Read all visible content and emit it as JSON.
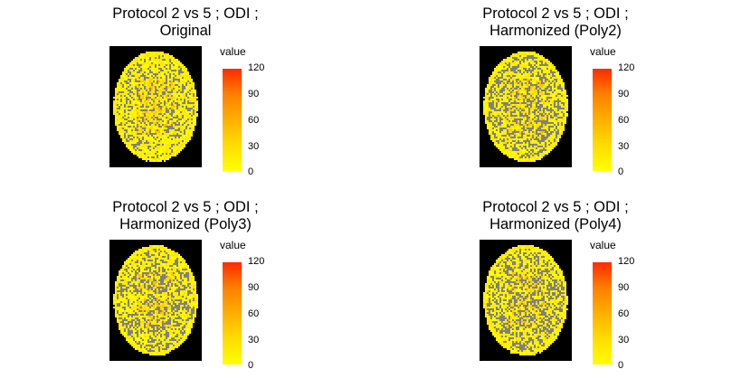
{
  "chart_data": [
    {
      "type": "heatmap",
      "title_lines": [
        "Protocol 2 vs 5 ; ODI ;",
        "Original"
      ],
      "legend_title": "value",
      "scale_ticks": [
        "120",
        "90",
        "60",
        "30",
        "0"
      ],
      "scale_range": [
        0,
        120
      ],
      "colors": {
        "low": "#ffff00",
        "high": "#ff2a00",
        "background": "#000000",
        "gap": "#808080"
      }
    },
    {
      "type": "heatmap",
      "title_lines": [
        "Protocol 2 vs 5 ; ODI ;",
        "Harmonized (Poly2)"
      ],
      "legend_title": "value",
      "scale_ticks": [
        "120",
        "90",
        "60",
        "30",
        "0"
      ],
      "scale_range": [
        0,
        120
      ],
      "colors": {
        "low": "#ffff00",
        "high": "#ff2a00",
        "background": "#000000",
        "gap": "#808080"
      }
    },
    {
      "type": "heatmap",
      "title_lines": [
        "Protocol 2 vs 5 ; ODI ;",
        "Harmonized (Poly3)"
      ],
      "legend_title": "value",
      "scale_ticks": [
        "120",
        "90",
        "60",
        "30",
        "0"
      ],
      "scale_range": [
        0,
        120
      ],
      "colors": {
        "low": "#ffff00",
        "high": "#ff2a00",
        "background": "#000000",
        "gap": "#808080"
      }
    },
    {
      "type": "heatmap",
      "title_lines": [
        "Protocol 2 vs 5 ; ODI ;",
        "Harmonized (Poly4)"
      ],
      "legend_title": "value",
      "scale_ticks": [
        "120",
        "90",
        "60",
        "30",
        "0"
      ],
      "scale_range": [
        0,
        120
      ],
      "colors": {
        "low": "#ffff00",
        "high": "#ff2a00",
        "background": "#000000",
        "gap": "#808080"
      }
    }
  ]
}
